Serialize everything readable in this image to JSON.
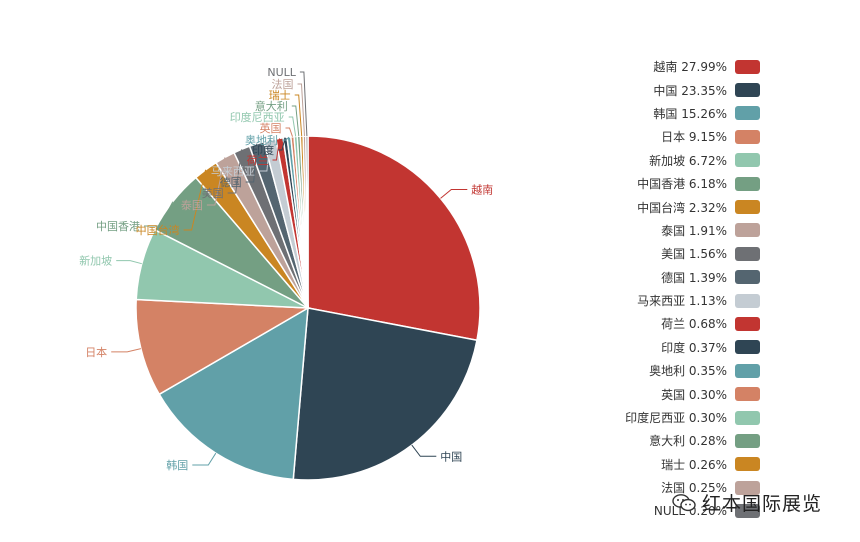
{
  "chart_data": {
    "type": "pie",
    "slices": [
      {
        "name": "越南",
        "value": 27.99,
        "color": "#c23531"
      },
      {
        "name": "中国",
        "value": 23.35,
        "color": "#2f4554"
      },
      {
        "name": "韩国",
        "value": 15.26,
        "color": "#61a0a8"
      },
      {
        "name": "日本",
        "value": 9.15,
        "color": "#d48265"
      },
      {
        "name": "新加坡",
        "value": 6.72,
        "color": "#91c7ae"
      },
      {
        "name": "中国香港",
        "value": 6.18,
        "color": "#749f83"
      },
      {
        "name": "中国台湾",
        "value": 2.32,
        "color": "#ca8622"
      },
      {
        "name": "泰国",
        "value": 1.91,
        "color": "#bda29a"
      },
      {
        "name": "美国",
        "value": 1.56,
        "color": "#6e7074"
      },
      {
        "name": "德国",
        "value": 1.39,
        "color": "#546570"
      },
      {
        "name": "马来西亚",
        "value": 1.13,
        "color": "#c4ccd3"
      },
      {
        "name": "荷兰",
        "value": 0.68,
        "color": "#c23531"
      },
      {
        "name": "印度",
        "value": 0.37,
        "color": "#2f4554"
      },
      {
        "name": "奥地利",
        "value": 0.35,
        "color": "#61a0a8"
      },
      {
        "name": "英国",
        "value": 0.3,
        "color": "#d48265"
      },
      {
        "name": "印度尼西亚",
        "value": 0.3,
        "color": "#91c7ae"
      },
      {
        "name": "意大利",
        "value": 0.28,
        "color": "#749f83"
      },
      {
        "name": "瑞士",
        "value": 0.26,
        "color": "#ca8622"
      },
      {
        "name": "法国",
        "value": 0.25,
        "color": "#bda29a"
      },
      {
        "name": "NULL",
        "value": 0.2,
        "color": "#6e7074"
      }
    ],
    "legend_position": "right"
  },
  "legend": [
    {
      "text": "越南 27.99%"
    },
    {
      "text": "中国 23.35%"
    },
    {
      "text": "韩国 15.26%"
    },
    {
      "text": "日本 9.15%"
    },
    {
      "text": "新加坡 6.72%"
    },
    {
      "text": "中国香港 6.18%"
    },
    {
      "text": "中国台湾 2.32%"
    },
    {
      "text": "泰国 1.91%"
    },
    {
      "text": "美国 1.56%"
    },
    {
      "text": "德国 1.39%"
    },
    {
      "text": "马来西亚 1.13%"
    },
    {
      "text": "荷兰 0.68%"
    },
    {
      "text": "印度 0.37%"
    },
    {
      "text": "奥地利 0.35%"
    },
    {
      "text": "英国 0.30%"
    },
    {
      "text": "印度尼西亚 0.30%"
    },
    {
      "text": "意大利 0.28%"
    },
    {
      "text": "瑞士 0.26%"
    },
    {
      "text": "法国 0.25%"
    },
    {
      "text": "NULL 0.20%"
    }
  ],
  "watermark": {
    "text": "红本国际展览",
    "icon": "wechat-icon"
  }
}
